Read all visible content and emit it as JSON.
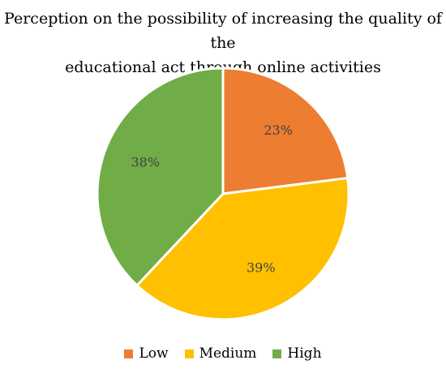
{
  "chart_data": {
    "type": "pie",
    "title": "Perception on the possibility of increasing the quality of the educational act through online activities",
    "title_lines": [
      "Perception on the possibility of increasing the quality of the",
      "educational act through online activities"
    ],
    "slices": [
      {
        "name": "Low",
        "value": 23,
        "label": "23%",
        "color": "#ED7D31"
      },
      {
        "name": "Medium",
        "value": 39,
        "label": "39%",
        "color": "#FFC000"
      },
      {
        "name": "High",
        "value": 38,
        "label": "38%",
        "color": "#70AD47"
      }
    ],
    "legend_position": "bottom",
    "start_angle": "12 o'clock",
    "direction": "clockwise"
  }
}
